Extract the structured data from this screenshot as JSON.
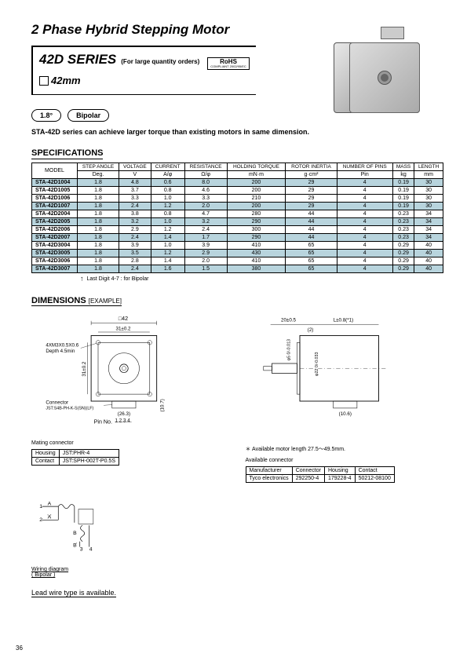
{
  "title": "2 Phase Hybrid Stepping Motor",
  "series": {
    "name": "42D SERIES",
    "sub": "(For large quantity orders)",
    "size": "42mm"
  },
  "rohs": {
    "top": "RoHS",
    "bot": "COMPLIANT\n2002/95/EC"
  },
  "tags": {
    "angle": "1.8°",
    "polarity": "Bipolar"
  },
  "intro": "STA-42D series can achieve larger torque than existing motors in same dimension.",
  "spec_header": "SPECIFICATIONS",
  "columns": {
    "labels": [
      "MODEL",
      "STEP ANGLE",
      "VOLTAGE",
      "CURRENT",
      "RESISTANCE",
      "HOLDING TORQUE",
      "ROTOR INERTIA",
      "NUMBER OF PINS",
      "MASS",
      "LENGTH"
    ],
    "units": [
      "",
      "Deg.",
      "V",
      "A/φ",
      "Ω/φ",
      "mN·m",
      "g·cm²",
      "Pin",
      "kg",
      "mm"
    ]
  },
  "rows": [
    {
      "m": "STA-42D1004",
      "a": "1.8",
      "v": "4.8",
      "c": "0.6",
      "r": "8.0",
      "t": "200",
      "i": "29",
      "p": "4",
      "ms": "0.19",
      "l": "30",
      "sh": true
    },
    {
      "m": "STA-42D1005",
      "a": "1.8",
      "v": "3.7",
      "c": "0.8",
      "r": "4.6",
      "t": "200",
      "i": "29",
      "p": "4",
      "ms": "0.19",
      "l": "30",
      "sh": false
    },
    {
      "m": "STA-42D1006",
      "a": "1.8",
      "v": "3.3",
      "c": "1.0",
      "r": "3.3",
      "t": "210",
      "i": "29",
      "p": "4",
      "ms": "0.19",
      "l": "30",
      "sh": false
    },
    {
      "m": "STA-42D1007",
      "a": "1.8",
      "v": "2.4",
      "c": "1.2",
      "r": "2.0",
      "t": "200",
      "i": "29",
      "p": "4",
      "ms": "0.19",
      "l": "30",
      "sh": true
    },
    {
      "m": "STA-42D2004",
      "a": "1.8",
      "v": "3.8",
      "c": "0.8",
      "r": "4.7",
      "t": "280",
      "i": "44",
      "p": "4",
      "ms": "0.23",
      "l": "34",
      "sh": false
    },
    {
      "m": "STA-42D2005",
      "a": "1.8",
      "v": "3.2",
      "c": "1.0",
      "r": "3.2",
      "t": "290",
      "i": "44",
      "p": "4",
      "ms": "0.23",
      "l": "34",
      "sh": true
    },
    {
      "m": "STA-42D2006",
      "a": "1.8",
      "v": "2.9",
      "c": "1.2",
      "r": "2.4",
      "t": "300",
      "i": "44",
      "p": "4",
      "ms": "0.23",
      "l": "34",
      "sh": false
    },
    {
      "m": "STA-42D2007",
      "a": "1.8",
      "v": "2.4",
      "c": "1.4",
      "r": "1.7",
      "t": "290",
      "i": "44",
      "p": "4",
      "ms": "0.23",
      "l": "34",
      "sh": true
    },
    {
      "m": "STA-42D3004",
      "a": "1.8",
      "v": "3.9",
      "c": "1.0",
      "r": "3.9",
      "t": "410",
      "i": "65",
      "p": "4",
      "ms": "0.29",
      "l": "40",
      "sh": false
    },
    {
      "m": "STA-42D3005",
      "a": "1.8",
      "v": "3.5",
      "c": "1.2",
      "r": "2.9",
      "t": "430",
      "i": "65",
      "p": "4",
      "ms": "0.29",
      "l": "40",
      "sh": true
    },
    {
      "m": "STA-42D3006",
      "a": "1.8",
      "v": "2.8",
      "c": "1.4",
      "r": "2.0",
      "t": "410",
      "i": "65",
      "p": "4",
      "ms": "0.29",
      "l": "40",
      "sh": false
    },
    {
      "m": "STA-42D3007",
      "a": "1.8",
      "v": "2.4",
      "c": "1.6",
      "r": "1.5",
      "t": "380",
      "i": "65",
      "p": "4",
      "ms": "0.29",
      "l": "40",
      "sh": true
    }
  ],
  "spec_note": "Last Digit  4-7 : for Bipolar",
  "dim_header": "DIMENSIONS",
  "dim_sub": "[EXAMPLE]",
  "front_dims": {
    "sq42": "□42",
    "d31_1": "31±0.2",
    "d31_2": "31±0.2",
    "screw": "4XM3X0.5X0.6",
    "depth": "Depth 4.5min",
    "conn": "Connector",
    "conn_part": "JST:S4B-PH-K-S(SN)(LF)",
    "pin": "Pin No.",
    "pins": "1234",
    "b26": "(26.3)",
    "h10": "(10.7)"
  },
  "side_dims": {
    "t20": "20±0.5",
    "L": "L±0.8(*1)",
    "g2": "(2)",
    "phi5": "φ5 0/-0.013",
    "phi22": "φ22 0/-0.033",
    "b10": "(10.6)"
  },
  "star_note": "＊ Available motor length 27.5〜49.5mm.",
  "mating_h": "Mating connector",
  "mating": {
    "h1": "Housing",
    "h2": "JST:PHR-4",
    "c1": "Contact",
    "c2": "JST:SPH-002T-P0.5S"
  },
  "avail_h": "Available connector",
  "avail": {
    "c0": "Manufacturer",
    "c1": "Connector",
    "c2": "Housing",
    "c3": "Contact",
    "r0": "Tyco electronics",
    "r1": "292250-4",
    "r2": "179228-4",
    "r3": "50212-08100"
  },
  "wiring": {
    "A": "A",
    "Ab": "A",
    "B": "B",
    "Bb": "B",
    "p1": "1",
    "p2": "2",
    "p3": "3",
    "p4": "4",
    "cap1": "Wiring diagram",
    "cap2": "( Bipolar )"
  },
  "lead_note": "Lead wire type is available.",
  "pagenum": "36"
}
